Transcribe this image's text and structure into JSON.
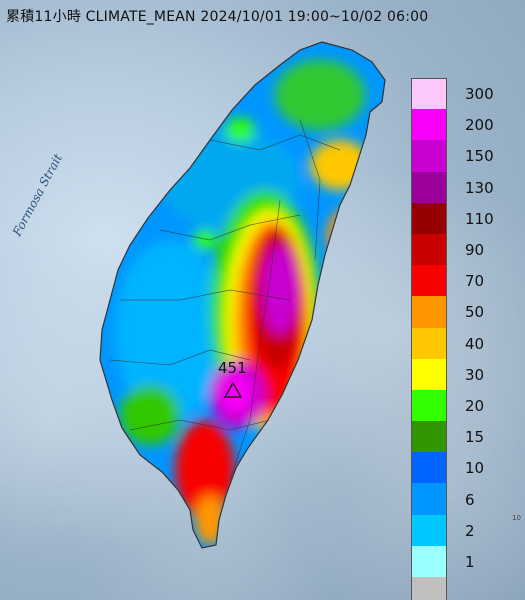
{
  "title": "累積11小時 CLIMATE_MEAN 2024/10/01 19:00~10/02 06:00",
  "strait_label": "Formosa Strait",
  "max_value_label": "451",
  "edge_mark": "10",
  "legend": [
    {
      "label": "300",
      "color": "#fcc8fc"
    },
    {
      "label": "200",
      "color": "#f800f8"
    },
    {
      "label": "150",
      "color": "#c800d0"
    },
    {
      "label": "130",
      "color": "#9c009c"
    },
    {
      "label": "110",
      "color": "#960000"
    },
    {
      "label": "90",
      "color": "#c80000"
    },
    {
      "label": "70",
      "color": "#f80000"
    },
    {
      "label": "50",
      "color": "#ff9600"
    },
    {
      "label": "40",
      "color": "#ffc800"
    },
    {
      "label": "30",
      "color": "#ffff00"
    },
    {
      "label": "20",
      "color": "#32ff00"
    },
    {
      "label": "15",
      "color": "#329600"
    },
    {
      "label": "10",
      "color": "#0064ff"
    },
    {
      "label": "6",
      "color": "#0096ff"
    },
    {
      "label": "2",
      "color": "#00c8ff"
    },
    {
      "label": "1",
      "color": "#9bffff"
    },
    {
      "label": "",
      "color": "#c0c0c0"
    }
  ]
}
